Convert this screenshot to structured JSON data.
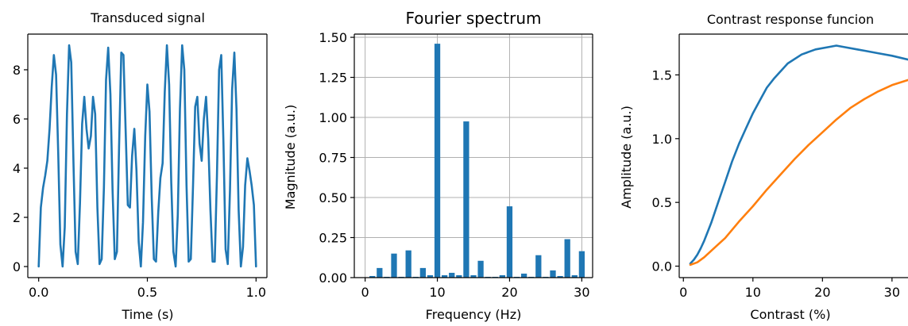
{
  "colors": {
    "blue": "#1f77b4",
    "orange": "#ff7f0e",
    "grid": "#b0b0b0",
    "axis": "#000000"
  },
  "chart_data": [
    {
      "type": "line",
      "title": "Transduced signal",
      "xlabel": "Time (s)",
      "ylabel": "",
      "xlim": [
        -0.05,
        1.05
      ],
      "ylim": [
        -0.45,
        9.45
      ],
      "xticks": [
        0.0,
        0.5,
        1.0
      ],
      "xtick_labels": [
        "0.0",
        "0.5",
        "1.0"
      ],
      "yticks": [
        0,
        2,
        4,
        6,
        8
      ],
      "ytick_labels": [
        "0",
        "2",
        "4",
        "6",
        "8"
      ],
      "grid": false,
      "series": [
        {
          "color": "#1f77b4",
          "x": [
            0.0,
            0.01,
            0.02,
            0.03,
            0.04,
            0.05,
            0.06,
            0.07,
            0.08,
            0.09,
            0.1,
            0.11,
            0.12,
            0.13,
            0.14,
            0.15,
            0.16,
            0.17,
            0.18,
            0.19,
            0.2,
            0.21,
            0.22,
            0.23,
            0.24,
            0.25,
            0.26,
            0.27,
            0.28,
            0.29,
            0.3,
            0.31,
            0.32,
            0.33,
            0.34,
            0.35,
            0.36,
            0.37,
            0.38,
            0.39,
            0.4,
            0.41,
            0.42,
            0.43,
            0.44,
            0.45,
            0.46,
            0.47,
            0.48,
            0.49,
            0.5,
            0.51,
            0.52,
            0.53,
            0.54,
            0.55,
            0.56,
            0.57,
            0.58,
            0.59,
            0.6,
            0.61,
            0.62,
            0.63,
            0.64,
            0.65,
            0.66,
            0.67,
            0.68,
            0.69,
            0.7,
            0.71,
            0.72,
            0.73,
            0.74,
            0.75,
            0.76,
            0.77,
            0.78,
            0.79,
            0.8,
            0.81,
            0.82,
            0.83,
            0.84,
            0.85,
            0.86,
            0.87,
            0.88,
            0.89,
            0.9,
            0.91,
            0.92,
            0.93,
            0.94,
            0.95,
            0.96,
            0.97,
            0.98,
            0.99,
            1.0
          ],
          "y": [
            0.0,
            2.4,
            3.2,
            3.7,
            4.3,
            5.6,
            7.3,
            8.6,
            7.8,
            4.6,
            0.9,
            0.0,
            1.6,
            6.2,
            9.0,
            8.3,
            4.2,
            0.6,
            0.1,
            2.6,
            5.8,
            6.9,
            5.6,
            4.8,
            5.3,
            6.9,
            6.2,
            2.4,
            0.1,
            0.3,
            3.2,
            7.6,
            8.9,
            7.0,
            3.1,
            0.3,
            0.6,
            4.9,
            8.7,
            8.6,
            5.6,
            2.5,
            2.4,
            4.5,
            5.6,
            3.9,
            1.0,
            0.0,
            1.8,
            5.3,
            7.4,
            6.3,
            2.8,
            0.3,
            0.2,
            2.2,
            3.6,
            4.2,
            7.1,
            9.0,
            7.4,
            3.4,
            0.6,
            0.0,
            2.1,
            6.4,
            9.0,
            8.0,
            3.3,
            0.2,
            0.3,
            3.3,
            6.5,
            6.9,
            5.0,
            4.3,
            6.0,
            6.9,
            5.2,
            2.3,
            0.2,
            0.2,
            3.7,
            8.0,
            8.6,
            5.0,
            0.7,
            0.1,
            3.1,
            7.2,
            8.7,
            6.4,
            2.3,
            0.0,
            0.8,
            3.3,
            4.4,
            3.9,
            3.3,
            2.5,
            0.0
          ]
        }
      ]
    },
    {
      "type": "bar",
      "title": "Fourier spectrum",
      "xlabel": "Frequency (Hz)",
      "ylabel": "Magnitude (a.u.)",
      "xlim": [
        -1.5,
        31.5
      ],
      "ylim": [
        0,
        1.52
      ],
      "xticks": [
        0,
        10,
        20,
        30
      ],
      "xtick_labels": [
        "0",
        "10",
        "20",
        "30"
      ],
      "yticks": [
        0.0,
        0.25,
        0.5,
        0.75,
        1.0,
        1.25,
        1.5
      ],
      "ytick_labels": [
        "0.00",
        "0.25",
        "0.50",
        "0.75",
        "1.00",
        "1.25",
        "1.50"
      ],
      "grid": true,
      "bar_color": "#1f77b4",
      "x": [
        1,
        2,
        3,
        4,
        5,
        6,
        7,
        8,
        9,
        10,
        11,
        12,
        13,
        14,
        15,
        16,
        17,
        18,
        19,
        20,
        21,
        22,
        23,
        24,
        25,
        26,
        27,
        28,
        29,
        30
      ],
      "values": [
        0.01,
        0.06,
        0.005,
        0.15,
        0.005,
        0.17,
        0.005,
        0.06,
        0.015,
        1.46,
        0.015,
        0.03,
        0.015,
        0.975,
        0.015,
        0.105,
        0.005,
        0.005,
        0.015,
        0.445,
        0.005,
        0.025,
        0.005,
        0.14,
        0.005,
        0.045,
        0.01,
        0.24,
        0.015,
        0.165
      ]
    },
    {
      "type": "line",
      "title": "Contrast response funcion",
      "xlabel": "Contrast (%)",
      "ylabel": "Amplitude (a.u.)",
      "xlim": [
        -0.6,
        32.3
      ],
      "ylim": [
        -0.09,
        1.82
      ],
      "xticks": [
        0,
        10,
        20,
        30
      ],
      "xtick_labels": [
        "0",
        "10",
        "20",
        "30"
      ],
      "yticks": [
        0.0,
        0.5,
        1.0,
        1.5
      ],
      "ytick_labels": [
        "0.0",
        "0.5",
        "1.0",
        "1.5"
      ],
      "grid": false,
      "series": [
        {
          "color": "#1f77b4",
          "x": [
            1.0,
            1.5,
            2.0,
            2.5,
            3.0,
            4.0,
            5.0,
            6.0,
            7.0,
            8.0,
            9.0,
            10.0,
            11.0,
            12.0,
            13.0,
            15.0,
            17.0,
            19.0,
            21.0,
            22.0,
            23.0,
            25.0,
            26.0,
            28.0,
            30.0,
            32.3
          ],
          "y": [
            0.02,
            0.05,
            0.09,
            0.14,
            0.2,
            0.34,
            0.5,
            0.66,
            0.82,
            0.96,
            1.08,
            1.2,
            1.3,
            1.4,
            1.47,
            1.59,
            1.66,
            1.7,
            1.72,
            1.73,
            1.72,
            1.7,
            1.69,
            1.67,
            1.65,
            1.62
          ]
        },
        {
          "color": "#ff7f0e",
          "x": [
            1.0,
            1.5,
            2.0,
            3.0,
            4.0,
            5.0,
            6.0,
            8.0,
            10.0,
            12.0,
            14.0,
            16.0,
            18.0,
            20.0,
            22.0,
            24.0,
            26.0,
            28.0,
            30.0,
            32.3
          ],
          "y": [
            0.01,
            0.02,
            0.03,
            0.07,
            0.12,
            0.17,
            0.22,
            0.35,
            0.47,
            0.6,
            0.72,
            0.84,
            0.95,
            1.05,
            1.15,
            1.24,
            1.31,
            1.37,
            1.42,
            1.46
          ]
        }
      ]
    }
  ]
}
